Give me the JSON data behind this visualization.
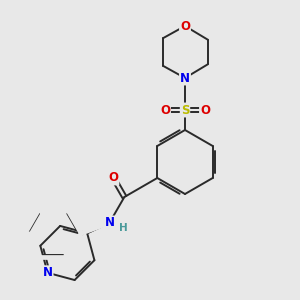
{
  "bg_color": "#e8e8e8",
  "bond_color": "#2a2a2a",
  "atom_colors": {
    "O": "#dd0000",
    "N": "#0000ee",
    "S": "#bbbb00",
    "H": "#4a9a9a"
  },
  "font_size_atom": 8.5,
  "font_size_H": 7.5,
  "figsize": [
    3.0,
    3.0
  ],
  "dpi": 100
}
